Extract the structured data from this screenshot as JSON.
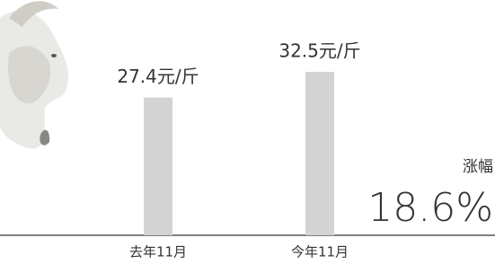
{
  "chart_data": {
    "type": "bar",
    "categories": [
      "去年11月",
      "今年11月"
    ],
    "values": [
      27.4,
      32.5
    ],
    "value_labels": [
      "27.4元/斤",
      "32.5元/斤"
    ],
    "color": "#d3d3d3",
    "change_label": "涨幅",
    "change": "18.6%"
  }
}
